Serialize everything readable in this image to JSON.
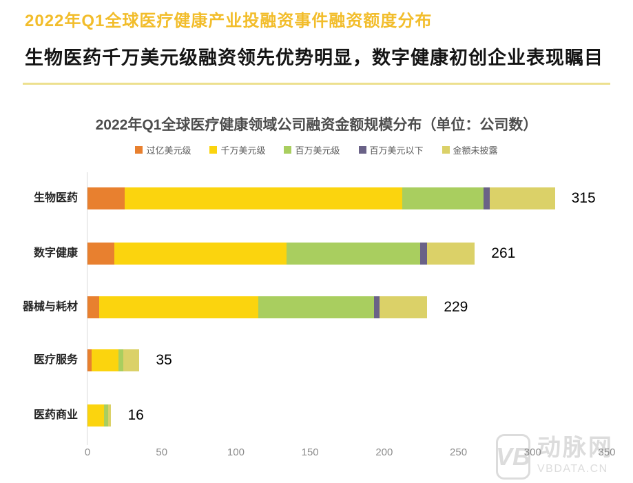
{
  "header": {
    "title": "2022年Q1全球医疗健康产业投融资事件融资额度分布",
    "subtitle": "生物医药千万美元级融资领先优势明显，数字健康初创企业表现瞩目"
  },
  "chart_data": {
    "type": "bar",
    "orientation": "horizontal",
    "stacked": true,
    "title": "2022年Q1全球医疗健康领域公司融资金额规模分布（单位：公司数）",
    "categories": [
      "生物医药",
      "数字健康",
      "器械与耗材",
      "医疗服务",
      "医药商业"
    ],
    "totals": [
      315,
      261,
      229,
      35,
      16
    ],
    "series": [
      {
        "name": "过亿美元级",
        "color": "#E8802F",
        "values": [
          25,
          18,
          8,
          3,
          0
        ]
      },
      {
        "name": "千万美元级",
        "color": "#FBD40E",
        "values": [
          187,
          116,
          107,
          18,
          11
        ]
      },
      {
        "name": "百万美元级",
        "color": "#A9CE5F",
        "values": [
          55,
          90,
          78,
          3,
          3
        ]
      },
      {
        "name": "百万美元以下",
        "color": "#6A6287",
        "values": [
          4,
          5,
          4,
          0,
          0
        ]
      },
      {
        "name": "金额未披露",
        "color": "#DBD168",
        "values": [
          44,
          32,
          32,
          11,
          2
        ]
      }
    ],
    "xlabel": "",
    "ylabel": "",
    "xlim": [
      0,
      350
    ],
    "x_ticks": [
      0,
      50,
      100,
      150,
      200,
      250,
      300,
      350
    ],
    "legend_position": "top",
    "grid": false
  },
  "watermark": {
    "logo_text": "VB",
    "name": "动脉网",
    "domain": "VBDATA.CN"
  },
  "colors": {
    "title_gold": "#F2BD2B",
    "divider_yellow": "#EDE08E",
    "axis_line": "#D9D9D9",
    "tick_text": "#8C8C8C"
  }
}
